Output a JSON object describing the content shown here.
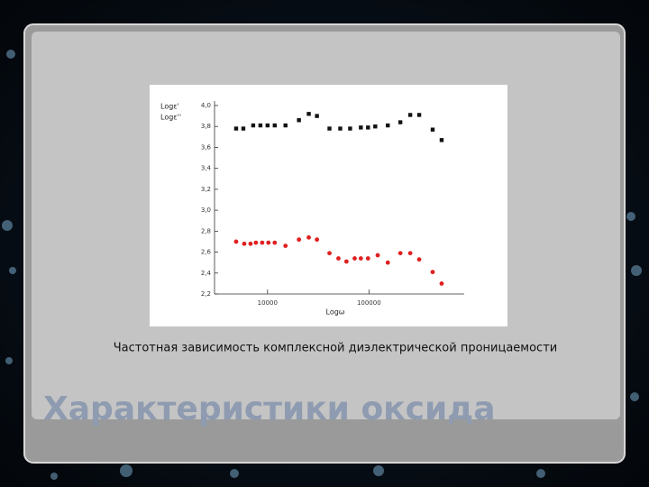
{
  "slide": {
    "caption": "Частотная зависимость комплексной диэлектрической проницаемости",
    "title": "Характеристики оксида"
  },
  "chart_data": {
    "type": "scatter",
    "y_label_1": "Logε'",
    "y_label_2": "Logε''",
    "x_label": "Logω",
    "x_log": true,
    "xlim": [
      3000,
      870000
    ],
    "xticks": [
      10000,
      100000
    ],
    "ylim": [
      2.2,
      4.0
    ],
    "yticks": [
      {
        "value": 2.2,
        "label": "2,2"
      },
      {
        "value": 2.4,
        "label": "2,4"
      },
      {
        "value": 2.6,
        "label": "2,6"
      },
      {
        "value": 2.8,
        "label": "2,8"
      },
      {
        "value": 3.0,
        "label": "3,0"
      },
      {
        "value": 3.2,
        "label": "3,2"
      },
      {
        "value": 3.4,
        "label": "3,4"
      },
      {
        "value": 3.6,
        "label": "3,6"
      },
      {
        "value": 3.8,
        "label": "3,8"
      },
      {
        "value": 4.0,
        "label": "4,0"
      }
    ],
    "series": [
      {
        "color": "#111111",
        "marker": "square",
        "x": [
          4900,
          5770,
          7220,
          8500,
          10000,
          11770,
          15030,
          20400,
          25500,
          30700,
          40800,
          52100,
          65200,
          83200,
          97900,
          115400,
          153500,
          204000,
          255400,
          313000,
          425000,
          521000
        ],
        "values": [
          3.78,
          3.78,
          3.81,
          3.81,
          3.81,
          3.81,
          3.81,
          3.86,
          3.92,
          3.9,
          3.78,
          3.78,
          3.78,
          3.79,
          3.79,
          3.8,
          3.81,
          3.84,
          3.91,
          3.91,
          3.77,
          3.67
        ]
      },
      {
        "color": "#e02020",
        "marker": "circle",
        "x": [
          4900,
          5890,
          6790,
          7670,
          8850,
          10200,
          11770,
          15030,
          20400,
          25500,
          30700,
          40800,
          50000,
          60000,
          72300,
          83200,
          97900,
          122000,
          153500,
          204000,
          255400,
          313000,
          425000,
          521000
        ],
        "values": [
          2.7,
          2.68,
          2.68,
          2.69,
          2.69,
          2.69,
          2.69,
          2.66,
          2.72,
          2.74,
          2.72,
          2.59,
          2.54,
          2.51,
          2.54,
          2.54,
          2.54,
          2.57,
          2.5,
          2.59,
          2.59,
          2.53,
          2.41,
          2.3
        ]
      }
    ]
  }
}
